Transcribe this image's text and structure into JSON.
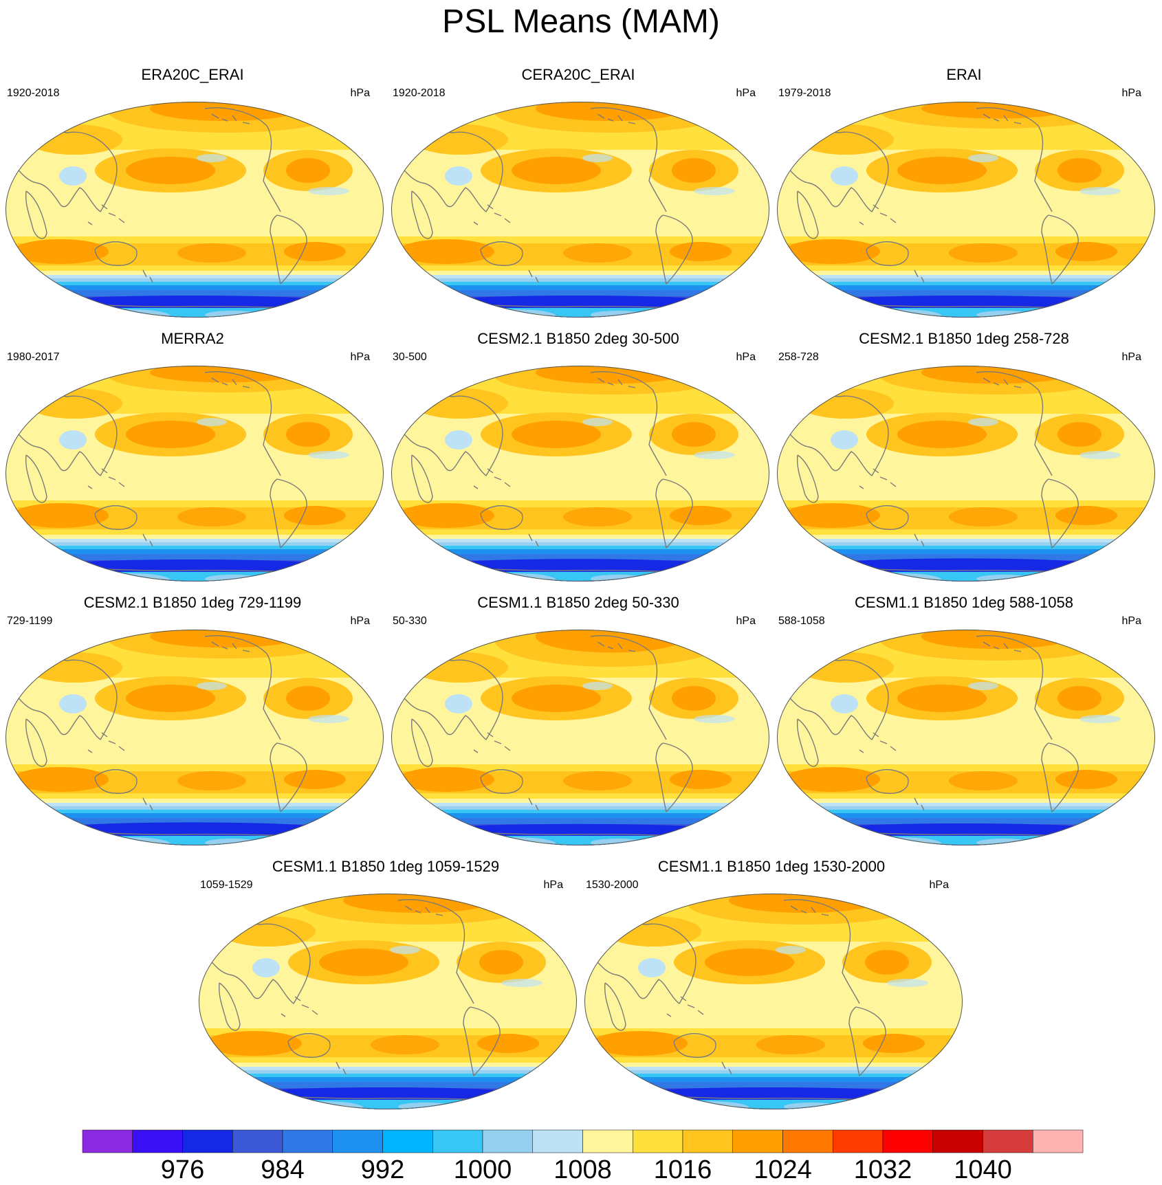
{
  "title": "PSL Means (MAM)",
  "panels": [
    {
      "title": "ERA20C_ERAI",
      "left": "1920-2018",
      "right": "hPa",
      "arctic": 1.0,
      "ant": 1.0
    },
    {
      "title": "CERA20C_ERAI",
      "left": "1920-2018",
      "right": "hPa",
      "arctic": 1.0,
      "ant": 1.0
    },
    {
      "title": "ERAI",
      "left": "1979-2018",
      "right": "hPa",
      "arctic": 0.8,
      "ant": 1.0
    },
    {
      "title": "MERRA2",
      "left": "1980-2017",
      "right": "hPa",
      "arctic": 0.8,
      "ant": 1.0
    },
    {
      "title": "CESM2.1 B1850 2deg 30-500",
      "left": "30-500",
      "right": "hPa",
      "arctic": 0.9,
      "ant": 1.1
    },
    {
      "title": "CESM2.1 B1850 1deg 258-728",
      "left": "258-728",
      "right": "hPa",
      "arctic": 0.9,
      "ant": 1.2
    },
    {
      "title": "CESM2.1 B1850 1deg 729-1199",
      "left": "729-1199",
      "right": "hPa",
      "arctic": 0.9,
      "ant": 1.2
    },
    {
      "title": "CESM1.1 B1850 2deg 50-330",
      "left": "50-330",
      "right": "hPa",
      "arctic": 1.3,
      "ant": 0.9
    },
    {
      "title": "CESM1.1 B1850 1deg 588-1058",
      "left": "588-1058",
      "right": "hPa",
      "arctic": 1.0,
      "ant": 1.0
    },
    {
      "title": "CESM1.1 B1850 1deg 1059-1529",
      "left": "1059-1529",
      "right": "hPa",
      "arctic": 1.0,
      "ant": 1.0
    },
    {
      "title": "CESM1.1 B1850 1deg 1530-2000",
      "left": "1530-2000",
      "right": "hPa",
      "arctic": 1.0,
      "ant": 1.0
    }
  ],
  "colorbar": {
    "colors": [
      "#8a2be2",
      "#3a10f5",
      "#1428e6",
      "#3c5ad7",
      "#2f78e6",
      "#1e90f0",
      "#00b4ff",
      "#38c6f5",
      "#96d0f0",
      "#bee2f5",
      "#fff59c",
      "#ffe03c",
      "#ffc41e",
      "#ffa000",
      "#ff7800",
      "#ff3c00",
      "#ff0000",
      "#c80000",
      "#d73c3c",
      "#ffb4b4"
    ],
    "labels": [
      "976",
      "984",
      "992",
      "1000",
      "1008",
      "1016",
      "1024",
      "1032",
      "1040"
    ]
  }
}
